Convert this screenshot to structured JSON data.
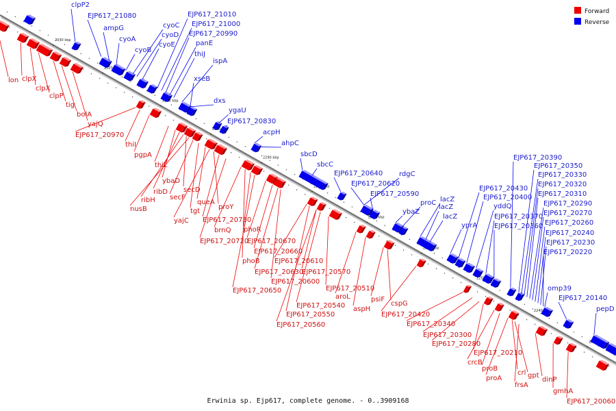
{
  "caption": "Erwinia sp. Ejp617, complete genome. - 0..3909168",
  "legend": [
    {
      "label": "Forward",
      "color": "#ee0000"
    },
    {
      "label": "Reverse",
      "color": "#0000ee"
    }
  ],
  "colors": {
    "forward": "#ee0000",
    "reverse": "#0000ee",
    "forward_label": "#cc1111",
    "reverse_label": "#1a1acc"
  },
  "ticks": [
    "2330 kbp",
    "2320 kbp",
    "2310 kbp",
    "2300 kbp",
    "2290 kbp",
    "2280 kbp",
    "2270 kbp",
    "2260 kbp",
    "2250 kbp",
    "2240 kbp",
    "2230 kbp"
  ],
  "reverse_genes": [
    {
      "name": "clpP2"
    },
    {
      "name": "EJP617_21080"
    },
    {
      "name": "ampG"
    },
    {
      "name": "cyoA"
    },
    {
      "name": "cyoB"
    },
    {
      "name": "cyoC"
    },
    {
      "name": "cyoD"
    },
    {
      "name": "cyoE"
    },
    {
      "name": "EJP617_21010"
    },
    {
      "name": "EJP617_21000"
    },
    {
      "name": "EJP617_20990"
    },
    {
      "name": "panE"
    },
    {
      "name": "thiJ"
    },
    {
      "name": "ispA"
    },
    {
      "name": "xseB"
    },
    {
      "name": "dxs"
    },
    {
      "name": "ygaU"
    },
    {
      "name": "EJP617_20830"
    },
    {
      "name": "acpH"
    },
    {
      "name": "ahpC"
    },
    {
      "name": "sbcD"
    },
    {
      "name": "sbcC"
    },
    {
      "name": "EJP617_20640"
    },
    {
      "name": "rdgC"
    },
    {
      "name": "EJP617_20620"
    },
    {
      "name": "EJP617_20590"
    },
    {
      "name": "ybaZ"
    },
    {
      "name": "proC"
    },
    {
      "name": "lacZ"
    },
    {
      "name": "lacZ"
    },
    {
      "name": "lacZ"
    },
    {
      "name": "yprA"
    },
    {
      "name": "EJP617_20430"
    },
    {
      "name": "EJP617_20400"
    },
    {
      "name": "yddQ"
    },
    {
      "name": "EJP617_20390"
    },
    {
      "name": "EJP617_20350"
    },
    {
      "name": "EJP617_20330"
    },
    {
      "name": "EJP617_20320"
    },
    {
      "name": "EJP617_20310"
    },
    {
      "name": "EJP617_20290"
    },
    {
      "name": "EJP617_20270"
    },
    {
      "name": "EJP617_20370"
    },
    {
      "name": "EJP617_20360"
    },
    {
      "name": "EJP617_20260"
    },
    {
      "name": "EJP617_20240"
    },
    {
      "name": "EJP617_20230"
    },
    {
      "name": "EJP617_20220"
    },
    {
      "name": "omp39"
    },
    {
      "name": "EJP617_20140"
    },
    {
      "name": "pepD"
    }
  ],
  "forward_genes": [
    {
      "name": "lon"
    },
    {
      "name": "clpX"
    },
    {
      "name": "clpX"
    },
    {
      "name": "clpP"
    },
    {
      "name": "tig"
    },
    {
      "name": "bolA"
    },
    {
      "name": "yajQ"
    },
    {
      "name": "EJP617_20970"
    },
    {
      "name": "thiI"
    },
    {
      "name": "pgpA"
    },
    {
      "name": "thiL"
    },
    {
      "name": "ybaD"
    },
    {
      "name": "ribD"
    },
    {
      "name": "ribH"
    },
    {
      "name": "nusB"
    },
    {
      "name": "secD"
    },
    {
      "name": "secF"
    },
    {
      "name": "tgt"
    },
    {
      "name": "queA"
    },
    {
      "name": "yajC"
    },
    {
      "name": "proY"
    },
    {
      "name": "EJP617_20730"
    },
    {
      "name": "brnQ"
    },
    {
      "name": "EJP617_20720"
    },
    {
      "name": "phoR"
    },
    {
      "name": "EJP617_20670"
    },
    {
      "name": "EJP617_20660"
    },
    {
      "name": "phoB"
    },
    {
      "name": "EJP617_20610"
    },
    {
      "name": "EJP617_20630"
    },
    {
      "name": "EJP617_20570"
    },
    {
      "name": "EJP617_20600"
    },
    {
      "name": "EJP617_20650"
    },
    {
      "name": "EJP617_20510"
    },
    {
      "name": "aroL"
    },
    {
      "name": "EJP617_20540"
    },
    {
      "name": "aspH"
    },
    {
      "name": "psiF"
    },
    {
      "name": "cspG"
    },
    {
      "name": "EJP617_20550"
    },
    {
      "name": "EJP617_20420"
    },
    {
      "name": "EJP617_20560"
    },
    {
      "name": "EJP617_20340"
    },
    {
      "name": "EJP617_20300"
    },
    {
      "name": "EJP617_20280"
    },
    {
      "name": "EJP617_20210"
    },
    {
      "name": "crcB"
    },
    {
      "name": "proB"
    },
    {
      "name": "proA"
    },
    {
      "name": "crl"
    },
    {
      "name": "gpt"
    },
    {
      "name": "frsA"
    },
    {
      "name": "dinP"
    },
    {
      "name": "gmhA"
    },
    {
      "name": "EJP617_20060"
    }
  ]
}
